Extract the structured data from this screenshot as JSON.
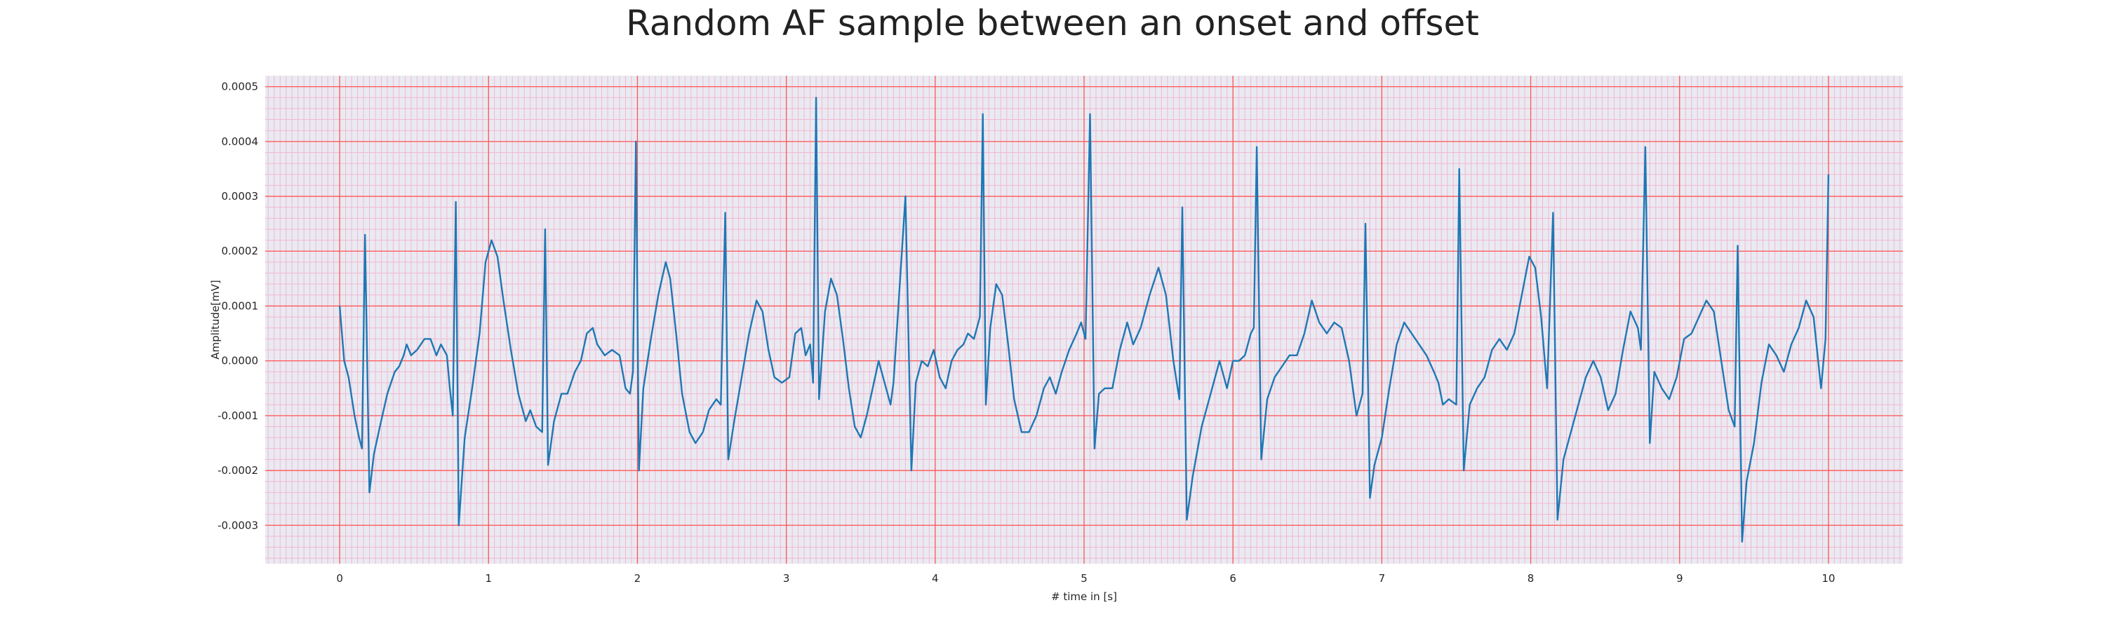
{
  "chart_data": {
    "type": "line",
    "title": "Random AF sample between an onset and offset",
    "xlabel": "# time in [s]",
    "ylabel": "Amplitude[mV]",
    "xlim": [
      -0.5,
      10.5
    ],
    "ylim": [
      -0.00037,
      0.00052
    ],
    "xticks": [
      0,
      1,
      2,
      3,
      4,
      5,
      6,
      7,
      8,
      9,
      10
    ],
    "xtick_labels": [
      "0",
      "1",
      "2",
      "3",
      "4",
      "5",
      "6",
      "7",
      "8",
      "9",
      "10"
    ],
    "yticks": [
      -0.0003,
      -0.0002,
      -0.0001,
      0.0,
      0.0001,
      0.0002,
      0.0003,
      0.0004,
      0.0005
    ],
    "ytick_labels": [
      "-0.0003",
      "-0.0002",
      "-0.0001",
      "0.0000",
      "0.0001",
      "0.0002",
      "0.0003",
      "0.0004",
      "0.0005"
    ],
    "grid": true,
    "colors": {
      "background": "#eaeaf2",
      "major_grid": "#ff5555",
      "minor_grid": "#f2b8cf",
      "line": "#1f77b4"
    },
    "series": [
      {
        "points": [
          [
            0.0,
            0.0001
          ],
          [
            0.03,
            0.0
          ],
          [
            0.06,
            -3e-05
          ],
          [
            0.1,
            -0.0001
          ],
          [
            0.13,
            -0.00014
          ],
          [
            0.15,
            -0.00016
          ],
          [
            0.17,
            0.00023
          ],
          [
            0.2,
            -0.00024
          ],
          [
            0.23,
            -0.00017
          ],
          [
            0.27,
            -0.00012
          ],
          [
            0.32,
            -6e-05
          ],
          [
            0.37,
            -2e-05
          ],
          [
            0.4,
            -1e-05
          ],
          [
            0.43,
            1e-05
          ],
          [
            0.45,
            3e-05
          ],
          [
            0.48,
            1e-05
          ],
          [
            0.52,
            2e-05
          ],
          [
            0.57,
            4e-05
          ],
          [
            0.61,
            4e-05
          ],
          [
            0.65,
            1e-05
          ],
          [
            0.68,
            3e-05
          ],
          [
            0.72,
            1e-05
          ],
          [
            0.74,
            -5e-05
          ],
          [
            0.76,
            -0.0001
          ],
          [
            0.78,
            0.00029
          ],
          [
            0.8,
            -0.0003
          ],
          [
            0.84,
            -0.00014
          ],
          [
            0.89,
            -5e-05
          ],
          [
            0.94,
            5e-05
          ],
          [
            0.98,
            0.00018
          ],
          [
            1.02,
            0.00022
          ],
          [
            1.06,
            0.00019
          ],
          [
            1.1,
            0.00011
          ],
          [
            1.15,
            2e-05
          ],
          [
            1.2,
            -6e-05
          ],
          [
            1.25,
            -0.00011
          ],
          [
            1.28,
            -9e-05
          ],
          [
            1.32,
            -0.00012
          ],
          [
            1.36,
            -0.00013
          ],
          [
            1.38,
            0.00024
          ],
          [
            1.4,
            -0.00019
          ],
          [
            1.44,
            -0.00011
          ],
          [
            1.49,
            -6e-05
          ],
          [
            1.53,
            -6e-05
          ],
          [
            1.58,
            -2e-05
          ],
          [
            1.62,
            0.0
          ],
          [
            1.66,
            5e-05
          ],
          [
            1.7,
            6e-05
          ],
          [
            1.73,
            3e-05
          ],
          [
            1.78,
            1e-05
          ],
          [
            1.83,
            2e-05
          ],
          [
            1.88,
            1e-05
          ],
          [
            1.92,
            -5e-05
          ],
          [
            1.95,
            -6e-05
          ],
          [
            1.97,
            -2e-05
          ],
          [
            1.99,
            0.0004
          ],
          [
            2.01,
            -0.0002
          ],
          [
            2.04,
            -5e-05
          ],
          [
            2.09,
            4e-05
          ],
          [
            2.14,
            0.00012
          ],
          [
            2.19,
            0.00018
          ],
          [
            2.22,
            0.00015
          ],
          [
            2.26,
            5e-05
          ],
          [
            2.3,
            -6e-05
          ],
          [
            2.35,
            -0.00013
          ],
          [
            2.39,
            -0.00015
          ],
          [
            2.44,
            -0.00013
          ],
          [
            2.48,
            -9e-05
          ],
          [
            2.53,
            -7e-05
          ],
          [
            2.56,
            -8e-05
          ],
          [
            2.59,
            0.00027
          ],
          [
            2.61,
            -0.00018
          ],
          [
            2.65,
            -0.00011
          ],
          [
            2.7,
            -3e-05
          ],
          [
            2.75,
            5e-05
          ],
          [
            2.8,
            0.00011
          ],
          [
            2.84,
            9e-05
          ],
          [
            2.88,
            2e-05
          ],
          [
            2.92,
            -3e-05
          ],
          [
            2.97,
            -4e-05
          ],
          [
            3.02,
            -3e-05
          ],
          [
            3.06,
            5e-05
          ],
          [
            3.1,
            6e-05
          ],
          [
            3.13,
            1e-05
          ],
          [
            3.16,
            3e-05
          ],
          [
            3.18,
            -4e-05
          ],
          [
            3.2,
            0.00048
          ],
          [
            3.22,
            -7e-05
          ],
          [
            3.26,
            9e-05
          ],
          [
            3.3,
            0.00015
          ],
          [
            3.34,
            0.00012
          ],
          [
            3.38,
            4e-05
          ],
          [
            3.42,
            -5e-05
          ],
          [
            3.46,
            -0.00012
          ],
          [
            3.5,
            -0.00014
          ],
          [
            3.54,
            -0.0001
          ],
          [
            3.58,
            -5e-05
          ],
          [
            3.62,
            -0.0
          ],
          [
            3.66,
            -4e-05
          ],
          [
            3.7,
            -8e-05
          ],
          [
            3.72,
            -4e-05
          ],
          [
            3.8,
            0.0003
          ],
          [
            3.84,
            -0.0002
          ],
          [
            3.87,
            -4e-05
          ],
          [
            3.91,
            0.0
          ],
          [
            3.95,
            -1e-05
          ],
          [
            3.99,
            2e-05
          ],
          [
            4.03,
            -3e-05
          ],
          [
            4.07,
            -5e-05
          ],
          [
            4.11,
            0.0
          ],
          [
            4.15,
            2e-05
          ],
          [
            4.19,
            3e-05
          ],
          [
            4.22,
            5e-05
          ],
          [
            4.26,
            4e-05
          ],
          [
            4.3,
            8e-05
          ],
          [
            4.32,
            0.00045
          ],
          [
            4.34,
            -8e-05
          ],
          [
            4.37,
            6e-05
          ],
          [
            4.41,
            0.00014
          ],
          [
            4.45,
            0.00012
          ],
          [
            4.49,
            3e-05
          ],
          [
            4.53,
            -7e-05
          ],
          [
            4.58,
            -0.00013
          ],
          [
            4.63,
            -0.00013
          ],
          [
            4.68,
            -0.0001
          ],
          [
            4.73,
            -5e-05
          ],
          [
            4.77,
            -3e-05
          ],
          [
            4.81,
            -6e-05
          ],
          [
            4.85,
            -2e-05
          ],
          [
            4.9,
            2e-05
          ],
          [
            4.95,
            5e-05
          ],
          [
            4.98,
            7e-05
          ],
          [
            5.01,
            4e-05
          ],
          [
            5.04,
            0.00045
          ],
          [
            5.07,
            -0.00016
          ],
          [
            5.1,
            -6e-05
          ],
          [
            5.14,
            -5e-05
          ],
          [
            5.19,
            -5e-05
          ],
          [
            5.24,
            2e-05
          ],
          [
            5.29,
            7e-05
          ],
          [
            5.33,
            3e-05
          ],
          [
            5.38,
            6e-05
          ],
          [
            5.44,
            0.00012
          ],
          [
            5.5,
            0.00017
          ],
          [
            5.55,
            0.00012
          ],
          [
            5.6,
            0.0
          ],
          [
            5.64,
            -7e-05
          ],
          [
            5.66,
            0.00028
          ],
          [
            5.69,
            -0.00029
          ],
          [
            5.73,
            -0.00021
          ],
          [
            5.79,
            -0.00012
          ],
          [
            5.85,
            -6e-05
          ],
          [
            5.91,
            -0.0
          ],
          [
            5.96,
            -5e-05
          ],
          [
            6.0,
            0.0
          ],
          [
            6.04,
            0.0
          ],
          [
            6.08,
            1e-05
          ],
          [
            6.12,
            5e-05
          ],
          [
            6.14,
            6e-05
          ],
          [
            6.16,
            0.00039
          ],
          [
            6.19,
            -0.00018
          ],
          [
            6.23,
            -7e-05
          ],
          [
            6.28,
            -3e-05
          ],
          [
            6.33,
            -1e-05
          ],
          [
            6.38,
            1e-05
          ],
          [
            6.43,
            1e-05
          ],
          [
            6.48,
            5e-05
          ],
          [
            6.53,
            0.00011
          ],
          [
            6.58,
            7e-05
          ],
          [
            6.63,
            5e-05
          ],
          [
            6.68,
            7e-05
          ],
          [
            6.73,
            6e-05
          ],
          [
            6.78,
            -0.0
          ],
          [
            6.83,
            -0.0001
          ],
          [
            6.87,
            -6e-05
          ],
          [
            6.89,
            0.00025
          ],
          [
            6.92,
            -0.00025
          ],
          [
            6.95,
            -0.00019
          ],
          [
            7.0,
            -0.00014
          ],
          [
            7.05,
            -5e-05
          ],
          [
            7.1,
            3e-05
          ],
          [
            7.15,
            7e-05
          ],
          [
            7.2,
            5e-05
          ],
          [
            7.25,
            3e-05
          ],
          [
            7.3,
            1e-05
          ],
          [
            7.35,
            -2e-05
          ],
          [
            7.38,
            -4e-05
          ],
          [
            7.41,
            -8e-05
          ],
          [
            7.45,
            -7e-05
          ],
          [
            7.5,
            -8e-05
          ],
          [
            7.52,
            0.00035
          ],
          [
            7.55,
            -0.0002
          ],
          [
            7.59,
            -8e-05
          ],
          [
            7.64,
            -5e-05
          ],
          [
            7.69,
            -3e-05
          ],
          [
            7.74,
            2e-05
          ],
          [
            7.79,
            4e-05
          ],
          [
            7.84,
            2e-05
          ],
          [
            7.89,
            5e-05
          ],
          [
            7.94,
            0.00012
          ],
          [
            7.99,
            0.00019
          ],
          [
            8.03,
            0.00017
          ],
          [
            8.07,
            8e-05
          ],
          [
            8.11,
            -5e-05
          ],
          [
            8.15,
            0.00027
          ],
          [
            8.18,
            -0.00029
          ],
          [
            8.22,
            -0.00018
          ],
          [
            8.27,
            -0.00013
          ],
          [
            8.32,
            -8e-05
          ],
          [
            8.37,
            -3e-05
          ],
          [
            8.42,
            -0.0
          ],
          [
            8.47,
            -3e-05
          ],
          [
            8.52,
            -9e-05
          ],
          [
            8.57,
            -6e-05
          ],
          [
            8.62,
            2e-05
          ],
          [
            8.67,
            9e-05
          ],
          [
            8.72,
            6e-05
          ],
          [
            8.74,
            2e-05
          ],
          [
            8.77,
            0.00039
          ],
          [
            8.8,
            -0.00015
          ],
          [
            8.83,
            -2e-05
          ],
          [
            8.88,
            -5e-05
          ],
          [
            8.93,
            -7e-05
          ],
          [
            8.98,
            -3e-05
          ],
          [
            9.03,
            4e-05
          ],
          [
            9.08,
            5e-05
          ],
          [
            9.13,
            8e-05
          ],
          [
            9.18,
            0.00011
          ],
          [
            9.23,
            9e-05
          ],
          [
            9.28,
            0.0
          ],
          [
            9.33,
            -9e-05
          ],
          [
            9.37,
            -0.00012
          ],
          [
            9.39,
            0.00021
          ],
          [
            9.42,
            -0.00033
          ],
          [
            9.45,
            -0.00022
          ],
          [
            9.5,
            -0.00015
          ],
          [
            9.55,
            -4e-05
          ],
          [
            9.6,
            3e-05
          ],
          [
            9.65,
            1e-05
          ],
          [
            9.7,
            -2e-05
          ],
          [
            9.75,
            3e-05
          ],
          [
            9.8,
            6e-05
          ],
          [
            9.85,
            0.00011
          ],
          [
            9.9,
            8e-05
          ],
          [
            9.95,
            -5e-05
          ],
          [
            9.98,
            4e-05
          ],
          [
            10.0,
            0.00034
          ]
        ]
      }
    ]
  }
}
